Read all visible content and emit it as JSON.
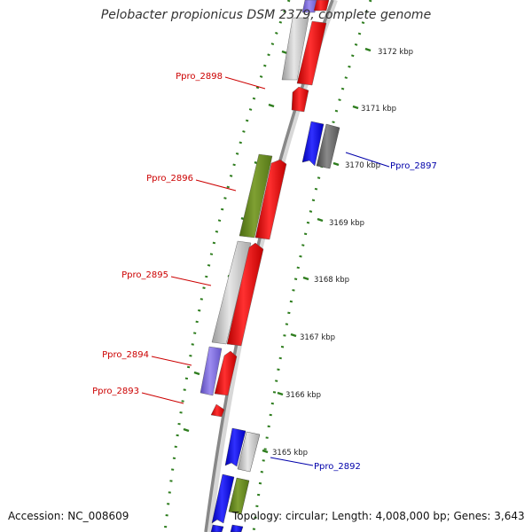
{
  "title": "Pelobacter propionicus DSM 2379, complete genome",
  "accession_label": "Accession: NC_008609",
  "summary_label": "Topology: circular; Length: 4,008,000 bp; Genes: 3,643",
  "colors": {
    "backbone": "#8c8c8c",
    "tick_dots": "#2e7d1e",
    "cds": "#ff0000",
    "rna": "#1a1aff",
    "pseudo": "#cccccc",
    "cog_green": "#6b8e23",
    "cog_purple": "#7b68ee",
    "cog_gray": "#707070",
    "label_red": "#cc0000",
    "label_blue": "#0000aa"
  },
  "ticks": [
    "3172 kbp",
    "3171 kbp",
    "3170 kbp",
    "3169 kbp",
    "3168 kbp",
    "3167 kbp",
    "3166 kbp",
    "3165 kbp"
  ],
  "gene_labels": [
    {
      "text": "Ppro_2898",
      "color": "red"
    },
    {
      "text": "Ppro_2897",
      "color": "blue"
    },
    {
      "text": "Ppro_2896",
      "color": "red"
    },
    {
      "text": "Ppro_2895",
      "color": "red"
    },
    {
      "text": "Ppro_2894",
      "color": "red"
    },
    {
      "text": "Ppro_2893",
      "color": "red"
    },
    {
      "text": "Ppro_2892",
      "color": "blue"
    }
  ]
}
